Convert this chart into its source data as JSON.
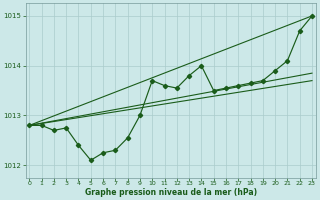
{
  "x": [
    0,
    1,
    2,
    3,
    4,
    5,
    6,
    7,
    8,
    9,
    10,
    11,
    12,
    13,
    14,
    15,
    16,
    17,
    18,
    19,
    20,
    21,
    22,
    23
  ],
  "main_line": [
    1012.8,
    1012.8,
    1012.7,
    1012.75,
    1012.4,
    1012.1,
    1012.25,
    1012.3,
    1012.55,
    1013.0,
    1013.7,
    1013.6,
    1013.55,
    1013.8,
    1014.0,
    1013.5,
    1013.55,
    1013.6,
    1013.65,
    1013.7,
    1013.9,
    1014.1,
    1014.7,
    1015.0
  ],
  "trend1": [
    1012.8,
    1015.0
  ],
  "trend1_x": [
    0,
    23
  ],
  "trend2": [
    1012.8,
    1013.85
  ],
  "trend2_x": [
    0,
    23
  ],
  "trend3": [
    1012.8,
    1013.7
  ],
  "trend3_x": [
    0,
    23
  ],
  "line_color": "#1a5c1a",
  "bg_color": "#cce8e8",
  "grid_color": "#aacccc",
  "axis_label_color": "#1a5c1a",
  "title": "Graphe pression niveau de la mer (hPa)",
  "ylim": [
    1011.75,
    1015.25
  ],
  "yticks": [
    1012,
    1013,
    1014,
    1015
  ],
  "xticks": [
    0,
    1,
    2,
    3,
    4,
    5,
    6,
    7,
    8,
    9,
    10,
    11,
    12,
    13,
    14,
    15,
    16,
    17,
    18,
    19,
    20,
    21,
    22,
    23
  ]
}
